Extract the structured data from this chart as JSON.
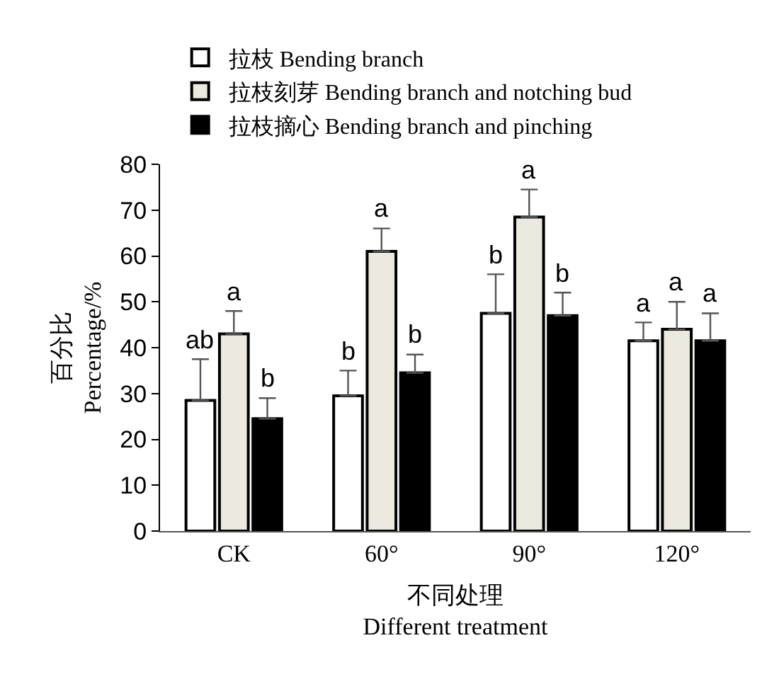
{
  "chart_data": {
    "type": "bar",
    "xlabel": "不同处理\nDifferent treatment",
    "ylabel": "百分比\nPercentage/%",
    "categories": [
      "CK",
      "60°",
      "90°",
      "120°"
    ],
    "series": [
      {
        "name": "拉枝 Bending branch",
        "color": "#ffffff",
        "values": [
          28.5,
          29.5,
          47.5,
          41.5
        ],
        "errors": [
          [
            28.5,
            37.5
          ],
          [
            29.5,
            35
          ],
          [
            47.5,
            56
          ],
          [
            41.5,
            45.5
          ]
        ]
      },
      {
        "name": "拉枝刻芽 Bending branch and notching bud",
        "color": "#ece9df",
        "values": [
          43,
          61,
          68.5,
          44
        ],
        "errors": [
          [
            43,
            48
          ],
          [
            61,
            66
          ],
          [
            68.5,
            74.5
          ],
          [
            44,
            50
          ]
        ]
      },
      {
        "name": "拉枝摘心 Bending branch and pinching",
        "color": "#000000",
        "values": [
          24.5,
          34.5,
          47,
          41.5
        ],
        "errors": [
          [
            24.5,
            29
          ],
          [
            34.5,
            38.5
          ],
          [
            47,
            52
          ],
          [
            41.5,
            47.5
          ]
        ]
      }
    ],
    "ylim": [
      0,
      80
    ],
    "yticks": [
      0,
      10,
      20,
      30,
      40,
      50,
      60,
      70,
      80
    ],
    "grid": false,
    "legend": "top",
    "annotations": [
      "ab",
      "a",
      "b",
      "b",
      "a",
      "b",
      "b",
      "a",
      "b",
      "a",
      "a",
      "a"
    ]
  }
}
